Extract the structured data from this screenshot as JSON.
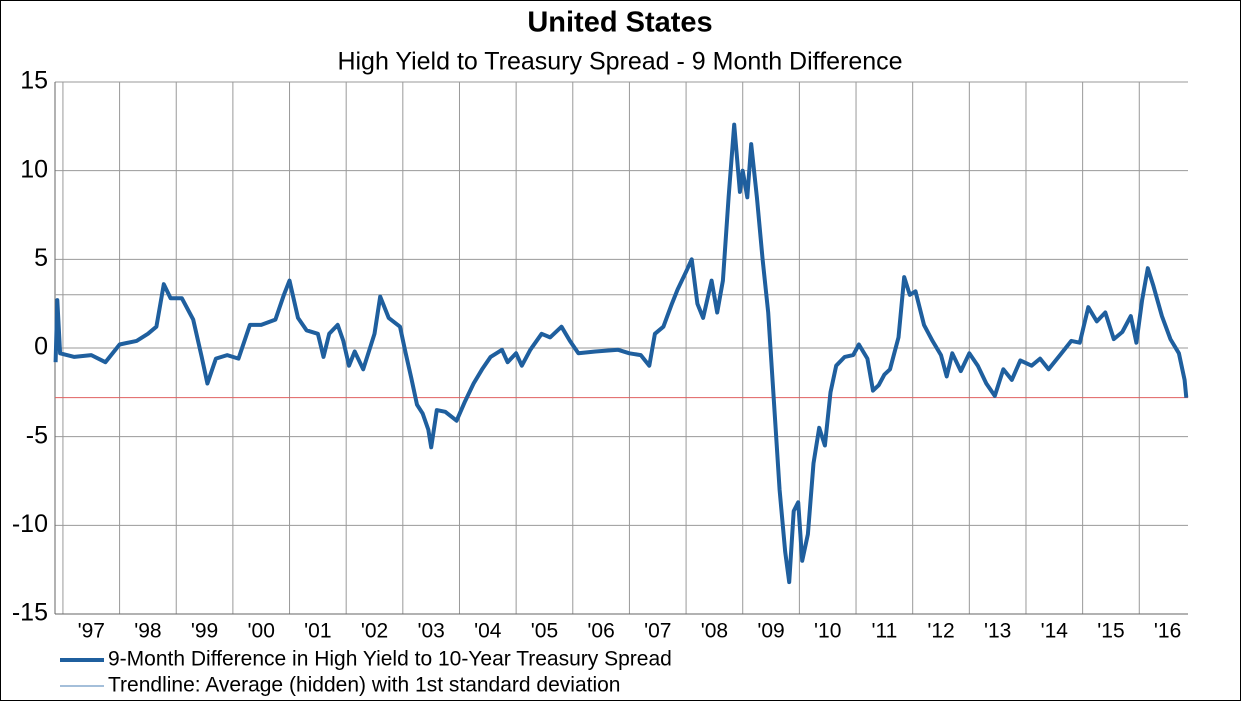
{
  "chart_data": {
    "type": "line",
    "title": "United States",
    "subtitle": "High Yield to Treasury Spread - 9 Month Difference",
    "xlim": [
      1996.86,
      2016.86
    ],
    "xticks": [
      {
        "value": 1997,
        "label": "'97"
      },
      {
        "value": 1998,
        "label": "'98"
      },
      {
        "value": 1999,
        "label": "'99"
      },
      {
        "value": 2000,
        "label": "'00"
      },
      {
        "value": 2001,
        "label": "'01"
      },
      {
        "value": 2002,
        "label": "'02"
      },
      {
        "value": 2003,
        "label": "'03"
      },
      {
        "value": 2004,
        "label": "'04"
      },
      {
        "value": 2005,
        "label": "'05"
      },
      {
        "value": 2006,
        "label": "'06"
      },
      {
        "value": 2007,
        "label": "'07"
      },
      {
        "value": 2008,
        "label": "'08"
      },
      {
        "value": 2009,
        "label": "'09"
      },
      {
        "value": 2010,
        "label": "'10"
      },
      {
        "value": 2011,
        "label": "'11"
      },
      {
        "value": 2012,
        "label": "'12"
      },
      {
        "value": 2013,
        "label": "'13"
      },
      {
        "value": 2014,
        "label": "'14"
      },
      {
        "value": 2015,
        "label": "'15"
      },
      {
        "value": 2016,
        "label": "'16"
      }
    ],
    "ylim": [
      -15,
      15
    ],
    "yticks": [
      -15,
      -10,
      -5,
      0,
      5,
      10,
      15
    ],
    "grid": true,
    "x": [
      1996.87,
      1996.9,
      1996.95,
      1997.2,
      1997.5,
      1997.75,
      1998.0,
      1998.3,
      1998.5,
      1998.65,
      1998.78,
      1998.9,
      1999.1,
      1999.3,
      1999.45,
      1999.55,
      1999.7,
      1999.9,
      2000.1,
      2000.3,
      2000.5,
      2000.75,
      2000.9,
      2001.0,
      2001.15,
      2001.3,
      2001.5,
      2001.6,
      2001.7,
      2001.85,
      2001.95,
      2002.05,
      2002.15,
      2002.3,
      2002.5,
      2002.6,
      2002.75,
      2002.95,
      2003.05,
      2003.15,
      2003.25,
      2003.35,
      2003.45,
      2003.5,
      2003.6,
      2003.75,
      2003.95,
      2004.1,
      2004.25,
      2004.4,
      2004.55,
      2004.75,
      2004.85,
      2005.0,
      2005.1,
      2005.25,
      2005.45,
      2005.6,
      2005.8,
      2005.95,
      2006.1,
      2006.4,
      2006.8,
      2007.0,
      2007.2,
      2007.35,
      2007.45,
      2007.6,
      2007.75,
      2007.85,
      2008.0,
      2008.1,
      2008.2,
      2008.3,
      2008.45,
      2008.55,
      2008.65,
      2008.75,
      2008.85,
      2008.95,
      2009.0,
      2009.08,
      2009.15,
      2009.25,
      2009.35,
      2009.45,
      2009.55,
      2009.65,
      2009.75,
      2009.82,
      2009.9,
      2009.98,
      2010.05,
      2010.15,
      2010.25,
      2010.35,
      2010.45,
      2010.55,
      2010.65,
      2010.8,
      2010.95,
      2011.05,
      2011.2,
      2011.3,
      2011.4,
      2011.5,
      2011.6,
      2011.75,
      2011.85,
      2011.95,
      2012.05,
      2012.2,
      2012.35,
      2012.5,
      2012.6,
      2012.7,
      2012.85,
      2013.0,
      2013.15,
      2013.3,
      2013.45,
      2013.6,
      2013.75,
      2013.9,
      2014.1,
      2014.25,
      2014.4,
      2014.6,
      2014.8,
      2014.95,
      2015.1,
      2015.25,
      2015.4,
      2015.55,
      2015.7,
      2015.85,
      2015.95,
      2016.05,
      2016.15,
      2016.25,
      2016.4,
      2016.55,
      2016.7,
      2016.8,
      2016.83
    ],
    "series": [
      {
        "name": "9-Month Difference in High Yield to 10-Year Treasury Spread",
        "color": "#1f5f9e",
        "values": [
          -0.8,
          2.7,
          -0.3,
          -0.5,
          -0.4,
          -0.8,
          0.2,
          0.4,
          0.8,
          1.2,
          3.6,
          2.8,
          2.8,
          1.6,
          -0.5,
          -2.0,
          -0.6,
          -0.4,
          -0.6,
          1.3,
          1.3,
          1.6,
          3.0,
          3.8,
          1.7,
          1.0,
          0.8,
          -0.5,
          0.8,
          1.3,
          0.4,
          -1.0,
          -0.2,
          -1.2,
          0.8,
          2.9,
          1.7,
          1.2,
          -0.3,
          -1.7,
          -3.2,
          -3.7,
          -4.6,
          -5.6,
          -3.5,
          -3.6,
          -4.1,
          -3.0,
          -2.0,
          -1.2,
          -0.5,
          -0.1,
          -0.8,
          -0.3,
          -1.0,
          -0.1,
          0.8,
          0.6,
          1.2,
          0.4,
          -0.3,
          -0.2,
          -0.1,
          -0.3,
          -0.4,
          -1.0,
          0.8,
          1.2,
          2.5,
          3.3,
          4.3,
          5.0,
          2.5,
          1.7,
          3.8,
          2.0,
          3.8,
          8.5,
          12.6,
          8.8,
          10.0,
          8.5,
          11.5,
          8.5,
          5.0,
          2.0,
          -3.0,
          -8.0,
          -11.5,
          -13.2,
          -9.2,
          -8.7,
          -12.0,
          -10.5,
          -6.5,
          -4.5,
          -5.5,
          -2.5,
          -1.0,
          -0.5,
          -0.4,
          0.2,
          -0.6,
          -2.4,
          -2.1,
          -1.5,
          -1.2,
          0.6,
          4.0,
          3.0,
          3.2,
          1.3,
          0.4,
          -0.4,
          -1.6,
          -0.3,
          -1.3,
          -0.3,
          -1.0,
          -2.0,
          -2.7,
          -1.2,
          -1.8,
          -0.7,
          -1.0,
          -0.6,
          -1.2,
          -0.4,
          0.4,
          0.3,
          2.3,
          1.5,
          2.0,
          0.5,
          0.9,
          1.8,
          0.3,
          2.7,
          4.5,
          3.5,
          1.8,
          0.5,
          -0.3,
          -1.8,
          -2.8
        ]
      }
    ],
    "trendline": {
      "name": "Trendline: Average (hidden) with 1st standard deviation",
      "values": [
        3.0,
        -2.8
      ],
      "colors": [
        "#9a9a9a",
        "#e06060"
      ]
    }
  }
}
